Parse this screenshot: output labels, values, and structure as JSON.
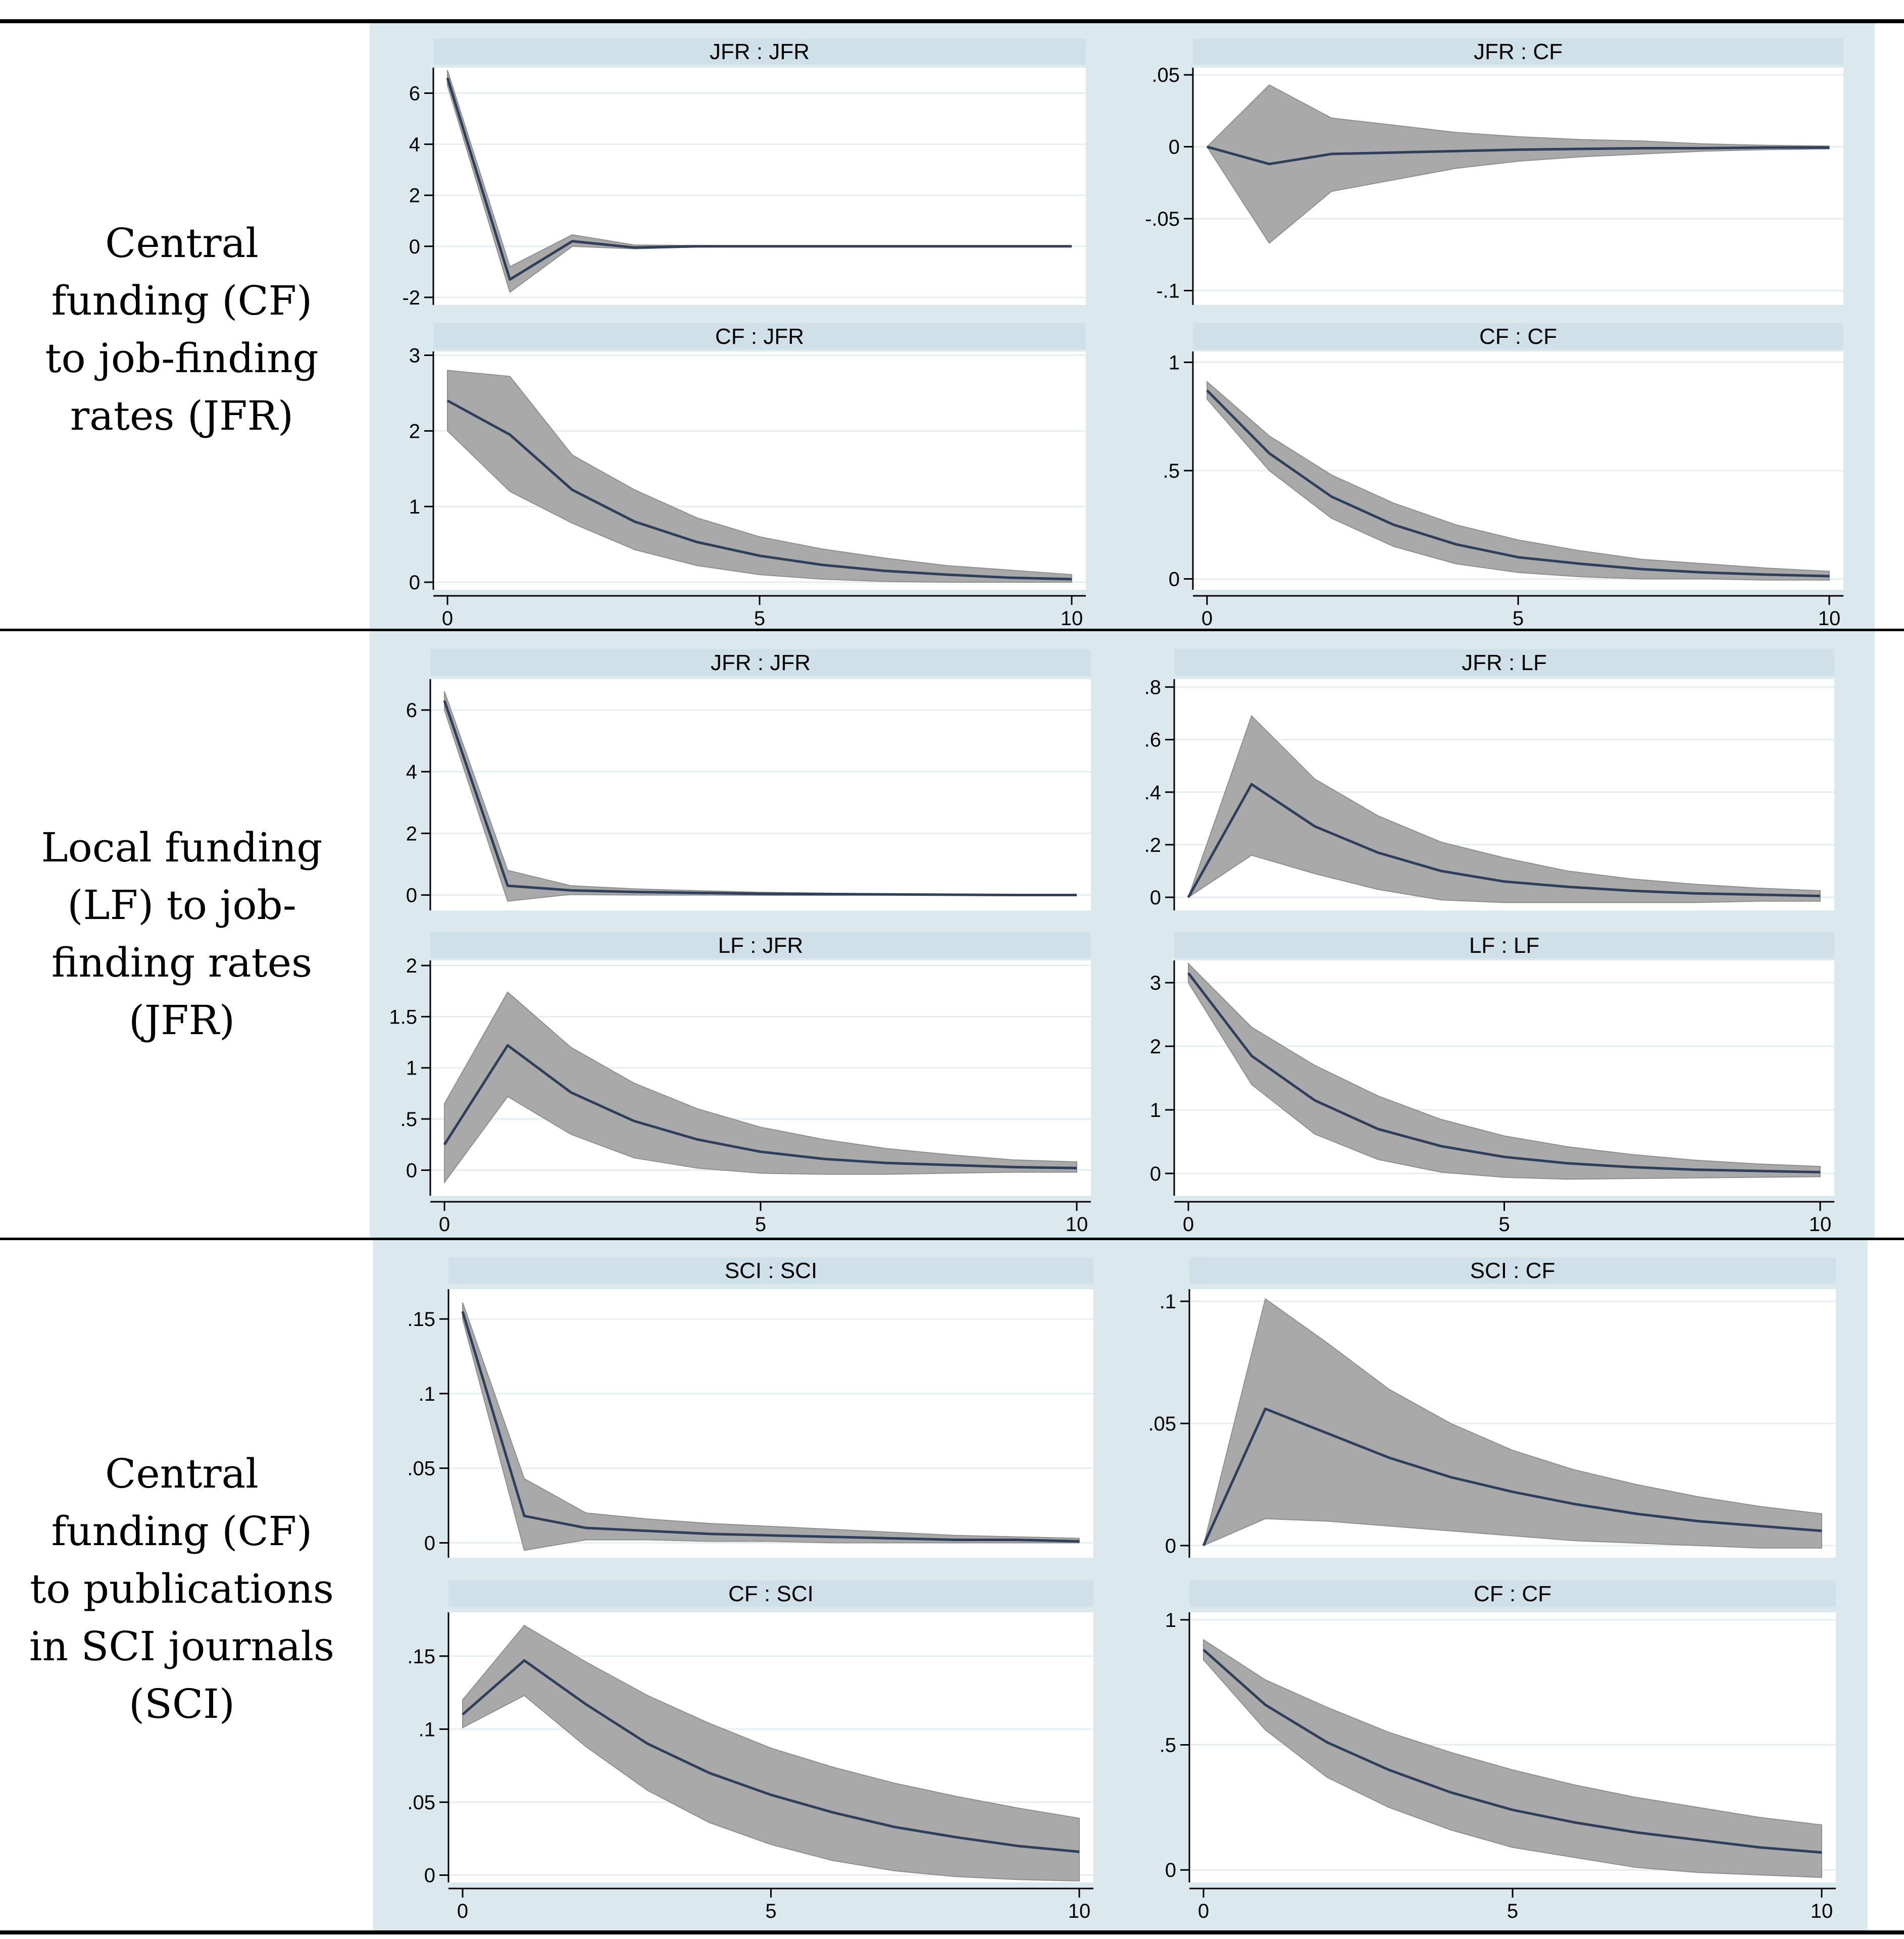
{
  "rows": [
    {
      "label_lines": [
        "Central",
        "funding (CF)",
        "to job-finding",
        "rates (JFR)"
      ]
    },
    {
      "label_lines": [
        "Local funding",
        "(LF) to job-",
        "finding rates",
        "(JFR)"
      ]
    },
    {
      "label_lines": [
        "Central",
        "funding (CF)",
        "to publications",
        "in SCI journals",
        "(SCI)"
      ]
    }
  ],
  "chart_data": [
    {
      "type": "area",
      "title": "JFR : JFR",
      "ylim": [
        -2.3,
        7
      ],
      "yticks": [
        -2,
        0,
        2,
        4,
        6
      ],
      "yticklabels": [
        "-2",
        "0",
        "2",
        "4",
        "6"
      ],
      "xlim": [
        0,
        10
      ],
      "xticks": [
        0,
        5,
        10
      ],
      "xticklabels": [
        "0",
        "5",
        "10"
      ],
      "x": [
        0,
        1,
        2,
        3,
        4,
        5,
        6,
        7,
        8,
        9,
        10
      ],
      "irf": [
        6.6,
        -1.3,
        0.2,
        -0.05,
        0.0,
        0.0,
        0.0,
        0.0,
        0.0,
        0.0,
        0.0
      ],
      "upper": [
        6.9,
        -0.8,
        0.45,
        0.05,
        0.03,
        0.02,
        0.01,
        0.01,
        0.0,
        0.0,
        0.0
      ],
      "lower": [
        6.3,
        -1.8,
        0.0,
        -0.1,
        -0.03,
        -0.02,
        -0.01,
        -0.01,
        0.0,
        0.0,
        0.0
      ]
    },
    {
      "type": "area",
      "title": "JFR : CF",
      "ylim": [
        -0.11,
        0.055
      ],
      "yticks": [
        -0.1,
        -0.05,
        0,
        0.05
      ],
      "yticklabels": [
        "-.1",
        "-.05",
        "0",
        ".05"
      ],
      "xlim": [
        0,
        10
      ],
      "xticks": [
        0,
        5,
        10
      ],
      "xticklabels": [
        "0",
        "5",
        "10"
      ],
      "x": [
        0,
        1,
        2,
        3,
        4,
        5,
        6,
        7,
        8,
        9,
        10
      ],
      "irf": [
        0.0,
        -0.012,
        -0.005,
        -0.004,
        -0.003,
        -0.002,
        -0.0015,
        -0.001,
        -0.001,
        -0.0005,
        -0.0005
      ],
      "upper": [
        0.0,
        0.043,
        0.02,
        0.015,
        0.01,
        0.007,
        0.005,
        0.004,
        0.002,
        0.001,
        0.0005
      ],
      "lower": [
        0.0,
        -0.067,
        -0.031,
        -0.023,
        -0.015,
        -0.01,
        -0.007,
        -0.005,
        -0.003,
        -0.002,
        -0.0015
      ]
    },
    {
      "type": "area",
      "title": "CF : JFR",
      "ylim": [
        -0.1,
        3.05
      ],
      "yticks": [
        0,
        1,
        2,
        3
      ],
      "yticklabels": [
        "0",
        "1",
        "2",
        "3"
      ],
      "xlim": [
        0,
        10
      ],
      "xticks": [
        0,
        5,
        10
      ],
      "xticklabels": [
        "0",
        "5",
        "10"
      ],
      "x": [
        0,
        1,
        2,
        3,
        4,
        5,
        6,
        7,
        8,
        9,
        10
      ],
      "irf": [
        2.4,
        1.95,
        1.22,
        0.8,
        0.53,
        0.35,
        0.23,
        0.15,
        0.1,
        0.06,
        0.04
      ],
      "upper": [
        2.8,
        2.72,
        1.68,
        1.22,
        0.85,
        0.6,
        0.44,
        0.32,
        0.22,
        0.16,
        0.1
      ],
      "lower": [
        2.0,
        1.2,
        0.78,
        0.43,
        0.22,
        0.1,
        0.04,
        0.01,
        0.0,
        0.0,
        0.0
      ]
    },
    {
      "type": "area",
      "title": "CF : CF",
      "ylim": [
        -0.05,
        1.05
      ],
      "yticks": [
        0,
        0.5,
        1
      ],
      "yticklabels": [
        "0",
        ".5",
        "1"
      ],
      "xlim": [
        0,
        10
      ],
      "xticks": [
        0,
        5,
        10
      ],
      "xticklabels": [
        "0",
        "5",
        "10"
      ],
      "x": [
        0,
        1,
        2,
        3,
        4,
        5,
        6,
        7,
        8,
        9,
        10
      ],
      "irf": [
        0.87,
        0.58,
        0.38,
        0.25,
        0.16,
        0.1,
        0.07,
        0.045,
        0.03,
        0.02,
        0.013
      ],
      "upper": [
        0.91,
        0.66,
        0.48,
        0.35,
        0.25,
        0.18,
        0.13,
        0.09,
        0.07,
        0.05,
        0.035
      ],
      "lower": [
        0.83,
        0.5,
        0.28,
        0.15,
        0.07,
        0.03,
        0.01,
        0.0,
        0.0,
        -0.005,
        -0.005
      ]
    },
    {
      "type": "area",
      "title": "JFR : JFR",
      "ylim": [
        -0.5,
        7.0
      ],
      "yticks": [
        0,
        2,
        4,
        6
      ],
      "yticklabels": [
        "0",
        "2",
        "4",
        "6"
      ],
      "xlim": [
        0,
        10
      ],
      "xticks": [
        0,
        5,
        10
      ],
      "xticklabels": [
        "0",
        "5",
        "10"
      ],
      "x": [
        0,
        1,
        2,
        3,
        4,
        5,
        6,
        7,
        8,
        9,
        10
      ],
      "irf": [
        6.3,
        0.3,
        0.15,
        0.1,
        0.07,
        0.04,
        0.03,
        0.02,
        0.01,
        0.0,
        0.0
      ],
      "upper": [
        6.6,
        0.8,
        0.3,
        0.2,
        0.14,
        0.09,
        0.06,
        0.04,
        0.02,
        0.01,
        0.0
      ],
      "lower": [
        6.0,
        -0.2,
        0.02,
        0.0,
        0.0,
        -0.01,
        -0.01,
        0.0,
        0.0,
        0.0,
        0.0
      ]
    },
    {
      "type": "area",
      "title": "JFR : LF",
      "ylim": [
        -0.05,
        0.83
      ],
      "yticks": [
        0,
        0.2,
        0.4,
        0.6,
        0.8
      ],
      "yticklabels": [
        "0",
        ".2",
        ".4",
        ".6",
        ".8"
      ],
      "xlim": [
        0,
        10
      ],
      "xticks": [
        0,
        5,
        10
      ],
      "xticklabels": [
        "0",
        "5",
        "10"
      ],
      "x": [
        0,
        1,
        2,
        3,
        4,
        5,
        6,
        7,
        8,
        9,
        10
      ],
      "irf": [
        0.0,
        0.43,
        0.27,
        0.17,
        0.1,
        0.06,
        0.04,
        0.025,
        0.015,
        0.01,
        0.005
      ],
      "upper": [
        0.0,
        0.69,
        0.45,
        0.31,
        0.21,
        0.15,
        0.1,
        0.07,
        0.05,
        0.035,
        0.025
      ],
      "lower": [
        0.0,
        0.16,
        0.09,
        0.03,
        -0.01,
        -0.02,
        -0.02,
        -0.02,
        -0.02,
        -0.015,
        -0.015
      ]
    },
    {
      "type": "area",
      "title": "LF : JFR",
      "ylim": [
        -0.25,
        2.05
      ],
      "yticks": [
        0,
        0.5,
        1,
        1.5,
        2
      ],
      "yticklabels": [
        "0",
        ".5",
        "1",
        "1.5",
        "2"
      ],
      "xlim": [
        0,
        10
      ],
      "xticks": [
        0,
        5,
        10
      ],
      "xticklabels": [
        "0",
        "5",
        "10"
      ],
      "x": [
        0,
        1,
        2,
        3,
        4,
        5,
        6,
        7,
        8,
        9,
        10
      ],
      "irf": [
        0.25,
        1.22,
        0.76,
        0.48,
        0.3,
        0.18,
        0.11,
        0.07,
        0.05,
        0.03,
        0.02
      ],
      "upper": [
        0.65,
        1.74,
        1.2,
        0.85,
        0.6,
        0.42,
        0.3,
        0.21,
        0.15,
        0.1,
        0.08
      ],
      "lower": [
        -0.12,
        0.72,
        0.35,
        0.12,
        0.02,
        -0.03,
        -0.04,
        -0.04,
        -0.03,
        -0.02,
        -0.02
      ]
    },
    {
      "type": "area",
      "title": "LF : LF",
      "ylim": [
        -0.35,
        3.35
      ],
      "yticks": [
        0,
        1,
        2,
        3
      ],
      "yticklabels": [
        "0",
        "1",
        "2",
        "3"
      ],
      "xlim": [
        0,
        10
      ],
      "xticks": [
        0,
        5,
        10
      ],
      "xticklabels": [
        "0",
        "5",
        "10"
      ],
      "x": [
        0,
        1,
        2,
        3,
        4,
        5,
        6,
        7,
        8,
        9,
        10
      ],
      "irf": [
        3.15,
        1.85,
        1.15,
        0.7,
        0.43,
        0.26,
        0.16,
        0.1,
        0.06,
        0.04,
        0.02
      ],
      "upper": [
        3.3,
        2.3,
        1.7,
        1.22,
        0.85,
        0.59,
        0.42,
        0.3,
        0.21,
        0.15,
        0.11
      ],
      "lower": [
        3.0,
        1.4,
        0.62,
        0.22,
        0.02,
        -0.06,
        -0.09,
        -0.08,
        -0.07,
        -0.06,
        -0.05
      ]
    },
    {
      "type": "area",
      "title": "SCI : SCI",
      "ylim": [
        -0.01,
        0.17
      ],
      "yticks": [
        0,
        0.05,
        0.1,
        0.15
      ],
      "yticklabels": [
        "0",
        ".05",
        ".1",
        ".15"
      ],
      "xlim": [
        0,
        10
      ],
      "xticks": [
        0,
        5,
        10
      ],
      "xticklabels": [
        "0",
        "5",
        "10"
      ],
      "x": [
        0,
        1,
        2,
        3,
        4,
        5,
        6,
        7,
        8,
        9,
        10
      ],
      "irf": [
        0.155,
        0.018,
        0.01,
        0.008,
        0.006,
        0.005,
        0.004,
        0.003,
        0.002,
        0.002,
        0.001
      ],
      "upper": [
        0.161,
        0.043,
        0.02,
        0.016,
        0.013,
        0.011,
        0.009,
        0.007,
        0.005,
        0.004,
        0.003
      ],
      "lower": [
        0.15,
        -0.005,
        0.002,
        0.002,
        0.001,
        0.001,
        0.0,
        0.0,
        0.0,
        0.0,
        0.0
      ]
    },
    {
      "type": "area",
      "title": "SCI : CF",
      "ylim": [
        -0.005,
        0.105
      ],
      "yticks": [
        0,
        0.05,
        0.1
      ],
      "yticklabels": [
        "0",
        ".05",
        ".1"
      ],
      "xlim": [
        0,
        10
      ],
      "xticks": [
        0,
        5,
        10
      ],
      "xticklabels": [
        "0",
        "5",
        "10"
      ],
      "x": [
        0,
        1,
        2,
        3,
        4,
        5,
        6,
        7,
        8,
        9,
        10
      ],
      "irf": [
        0.0,
        0.056,
        0.046,
        0.036,
        0.028,
        0.022,
        0.017,
        0.013,
        0.01,
        0.008,
        0.006
      ],
      "upper": [
        0.0,
        0.101,
        0.083,
        0.064,
        0.05,
        0.039,
        0.031,
        0.025,
        0.02,
        0.016,
        0.013
      ],
      "lower": [
        0.0,
        0.011,
        0.01,
        0.008,
        0.006,
        0.004,
        0.002,
        0.001,
        0.0,
        -0.001,
        -0.001
      ]
    },
    {
      "type": "area",
      "title": "CF : SCI",
      "ylim": [
        -0.005,
        0.18
      ],
      "yticks": [
        0,
        0.05,
        0.1,
        0.15
      ],
      "yticklabels": [
        "0",
        ".05",
        ".1",
        ".15"
      ],
      "xlim": [
        0,
        10
      ],
      "xticks": [
        0,
        5,
        10
      ],
      "xticklabels": [
        "0",
        "5",
        "10"
      ],
      "x": [
        0,
        1,
        2,
        3,
        4,
        5,
        6,
        7,
        8,
        9,
        10
      ],
      "irf": [
        0.11,
        0.147,
        0.117,
        0.09,
        0.07,
        0.055,
        0.043,
        0.033,
        0.026,
        0.02,
        0.016
      ],
      "upper": [
        0.12,
        0.171,
        0.146,
        0.123,
        0.104,
        0.087,
        0.074,
        0.063,
        0.054,
        0.046,
        0.039
      ],
      "lower": [
        0.101,
        0.123,
        0.088,
        0.058,
        0.036,
        0.021,
        0.01,
        0.003,
        -0.001,
        -0.003,
        -0.004
      ]
    },
    {
      "type": "area",
      "title": "CF : CF",
      "ylim": [
        -0.05,
        1.03
      ],
      "yticks": [
        0,
        0.5,
        1
      ],
      "yticklabels": [
        "0",
        ".5",
        "1"
      ],
      "xlim": [
        0,
        10
      ],
      "xticks": [
        0,
        5,
        10
      ],
      "xticklabels": [
        "0",
        "5",
        "10"
      ],
      "x": [
        0,
        1,
        2,
        3,
        4,
        5,
        6,
        7,
        8,
        9,
        10
      ],
      "irf": [
        0.88,
        0.66,
        0.51,
        0.4,
        0.31,
        0.24,
        0.19,
        0.15,
        0.12,
        0.09,
        0.07
      ],
      "upper": [
        0.92,
        0.76,
        0.65,
        0.55,
        0.47,
        0.4,
        0.34,
        0.29,
        0.25,
        0.21,
        0.18
      ],
      "lower": [
        0.84,
        0.56,
        0.37,
        0.25,
        0.16,
        0.09,
        0.05,
        0.01,
        -0.01,
        -0.02,
        -0.03
      ]
    }
  ]
}
